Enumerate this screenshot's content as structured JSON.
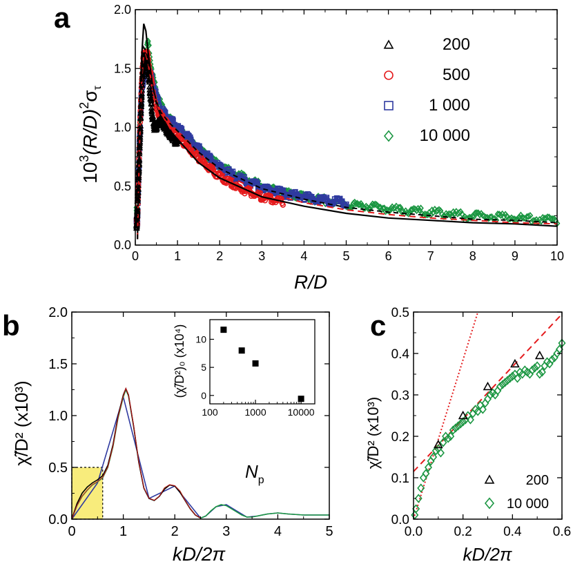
{
  "colors": {
    "black": "#000000",
    "red": "#e41a1c",
    "blue": "#2f3aa0",
    "green": "#1a9641",
    "highlight": "#f8ec7c"
  },
  "chart_data": [
    {
      "panel": "a",
      "type": "scatter",
      "panel_label": "a",
      "xlabel": "R/D",
      "ylabel_main": "10",
      "ylabel_sup1": "3",
      "ylabel_mid": "(R/D)",
      "ylabel_sup2": "2",
      "ylabel_sigma": "σ",
      "ylabel_sub": "τ",
      "xlim": [
        0,
        10
      ],
      "ylim": [
        0,
        2.0
      ],
      "xticks": [
        "0",
        "1",
        "2",
        "3",
        "4",
        "5",
        "6",
        "7",
        "8",
        "9",
        "10"
      ],
      "yticks": [
        "0.0",
        "0.5",
        "1.0",
        "1.5",
        "2.0"
      ],
      "legend": [
        {
          "marker": "triangle",
          "label": "200"
        },
        {
          "marker": "circle",
          "label": "500"
        },
        {
          "marker": "square",
          "label": "1 000"
        },
        {
          "marker": "diamond",
          "label": "10 000"
        }
      ],
      "series": [
        {
          "name": "200",
          "marker": "triangle",
          "xmax": 1.0,
          "x": [
            0.02,
            0.08,
            0.14,
            0.18,
            0.22,
            0.26,
            0.3,
            0.35,
            0.4,
            0.45,
            0.5,
            0.55,
            0.6,
            0.7,
            0.8,
            0.9,
            1.0
          ],
          "y": [
            0.05,
            0.6,
            1.2,
            1.5,
            1.6,
            1.55,
            1.5,
            1.3,
            1.1,
            1.0,
            1.0,
            1.05,
            1.05,
            1.0,
            0.95,
            0.9,
            0.85
          ]
        },
        {
          "name": "500",
          "marker": "circle",
          "xmax": 3.5,
          "x": [
            0.05,
            0.1,
            0.15,
            0.2,
            0.25,
            0.3,
            0.4,
            0.5,
            0.6,
            0.8,
            1.0,
            1.2,
            1.5,
            2.0,
            2.5,
            3.0,
            3.5
          ],
          "y": [
            0.2,
            0.9,
            1.4,
            1.62,
            1.65,
            1.6,
            1.35,
            1.15,
            1.1,
            1.0,
            0.92,
            0.85,
            0.74,
            0.58,
            0.48,
            0.41,
            0.36
          ]
        },
        {
          "name": "1 000",
          "marker": "square",
          "xmax": 5.0,
          "x": [
            0.05,
            0.1,
            0.15,
            0.2,
            0.3,
            0.4,
            0.5,
            0.6,
            0.8,
            1.0,
            1.5,
            2.0,
            2.5,
            3.0,
            3.5,
            4.0,
            4.5,
            5.0
          ],
          "y": [
            0.2,
            0.9,
            1.3,
            1.45,
            1.5,
            1.4,
            1.25,
            1.15,
            1.07,
            1.0,
            0.82,
            0.66,
            0.56,
            0.49,
            0.44,
            0.41,
            0.38,
            0.36
          ]
        },
        {
          "name": "10 000",
          "marker": "diamond",
          "xmax": 10.0,
          "x": [
            0.05,
            0.1,
            0.2,
            0.3,
            0.35,
            0.4,
            0.5,
            0.7,
            1.0,
            1.5,
            2.0,
            3.0,
            4.0,
            5.0,
            6.0,
            7.0,
            8.0,
            9.0,
            10.0
          ],
          "y": [
            0.3,
            1.0,
            1.5,
            1.72,
            1.6,
            1.45,
            1.3,
            1.12,
            1.0,
            0.82,
            0.67,
            0.5,
            0.41,
            0.35,
            0.31,
            0.28,
            0.25,
            0.23,
            0.21
          ]
        }
      ],
      "fit_lines": [
        {
          "style": "solid-black",
          "x": [
            0.05,
            0.1,
            0.15,
            0.2,
            0.25,
            0.3,
            0.4,
            0.5,
            0.6,
            0.8,
            1.0,
            1.5,
            2.0,
            3.0,
            4.0,
            5.0,
            6.0,
            7.0,
            8.0,
            9.0,
            10.0
          ],
          "y": [
            0.05,
            0.9,
            1.6,
            1.88,
            1.82,
            1.65,
            1.38,
            1.2,
            1.1,
            0.98,
            0.9,
            0.7,
            0.57,
            0.41,
            0.33,
            0.27,
            0.23,
            0.21,
            0.19,
            0.18,
            0.16
          ]
        },
        {
          "style": "dashed-red",
          "x": [
            0.05,
            0.1,
            0.15,
            0.2,
            0.25,
            0.3,
            0.4,
            0.5,
            0.6,
            0.8,
            1.0,
            1.5,
            2.0,
            3.0,
            4.0,
            5.0,
            6.0,
            7.0,
            8.0,
            9.0,
            10.0
          ],
          "y": [
            0.05,
            0.85,
            1.4,
            1.62,
            1.62,
            1.55,
            1.35,
            1.2,
            1.12,
            1.02,
            0.95,
            0.76,
            0.62,
            0.45,
            0.36,
            0.3,
            0.26,
            0.23,
            0.21,
            0.19,
            0.18
          ]
        },
        {
          "style": "dashed-black",
          "x": [
            0.05,
            0.1,
            0.15,
            0.2,
            0.25,
            0.3,
            0.4,
            0.5,
            0.6,
            0.8,
            1.0,
            1.5,
            2.0,
            3.0,
            4.0,
            5.0,
            6.0,
            7.0,
            8.0,
            9.0,
            10.0
          ],
          "y": [
            0.05,
            0.88,
            1.45,
            1.68,
            1.65,
            1.58,
            1.37,
            1.22,
            1.13,
            1.04,
            0.97,
            0.79,
            0.65,
            0.48,
            0.39,
            0.32,
            0.28,
            0.25,
            0.22,
            0.21,
            0.19
          ]
        }
      ]
    },
    {
      "panel": "b",
      "type": "line",
      "panel_label": "b",
      "xlabel": "kD/2π",
      "ylabel": "χ̃/D² (x10³)",
      "xlim": [
        0,
        5
      ],
      "ylim": [
        0,
        2.0
      ],
      "xticks": [
        "0",
        "1",
        "2",
        "3",
        "4",
        "5"
      ],
      "yticks": [
        "0.0",
        "0.5",
        "1.0",
        "1.5",
        "2.0"
      ],
      "highlight_box": {
        "x": [
          0,
          0.6
        ],
        "y": [
          0,
          0.5
        ]
      },
      "series": [
        {
          "name": "black",
          "x": [
            0,
            0.1,
            0.2,
            0.3,
            0.4,
            0.5,
            0.6,
            0.7,
            0.8,
            0.9,
            1.0,
            1.05,
            1.1,
            1.2,
            1.3,
            1.4,
            1.5,
            1.6,
            1.7,
            1.8,
            1.9,
            2.0,
            2.1,
            2.2,
            2.3,
            2.4,
            2.5
          ],
          "y": [
            0,
            0.15,
            0.25,
            0.31,
            0.35,
            0.38,
            0.42,
            0.52,
            0.72,
            1.0,
            1.2,
            1.26,
            1.2,
            0.9,
            0.55,
            0.3,
            0.2,
            0.18,
            0.22,
            0.29,
            0.33,
            0.32,
            0.26,
            0.18,
            0.1,
            0.04,
            0.01
          ]
        },
        {
          "name": "green",
          "x": [
            0,
            0.1,
            0.2,
            0.3,
            0.4,
            0.5,
            0.6,
            0.7,
            0.8,
            0.9,
            1.0,
            1.05,
            1.1,
            1.2,
            1.3,
            1.4,
            1.5,
            1.6,
            1.7,
            1.8,
            1.9,
            2.0,
            2.1,
            2.2,
            2.3,
            2.4,
            2.5,
            2.6,
            2.7,
            2.8,
            2.9,
            3.0,
            3.1,
            3.2,
            3.3,
            3.4,
            3.5,
            3.6,
            3.8,
            4.0,
            4.2,
            4.5,
            4.8,
            5.0
          ],
          "y": [
            0,
            0.13,
            0.22,
            0.28,
            0.33,
            0.36,
            0.4,
            0.5,
            0.7,
            0.98,
            1.18,
            1.25,
            1.19,
            0.9,
            0.55,
            0.3,
            0.2,
            0.18,
            0.22,
            0.3,
            0.33,
            0.32,
            0.27,
            0.18,
            0.1,
            0.04,
            0.01,
            0.03,
            0.08,
            0.12,
            0.14,
            0.13,
            0.1,
            0.07,
            0.04,
            0.02,
            0.02,
            0.03,
            0.05,
            0.06,
            0.05,
            0.04,
            0.04,
            0.04
          ]
        },
        {
          "name": "blue",
          "x": [
            0,
            0.5,
            1.0,
            1.5,
            2.0,
            2.5,
            2.6,
            2.8,
            3.0,
            3.2,
            3.4,
            3.6,
            3.8,
            4.0,
            4.2,
            4.5,
            4.8,
            5.0
          ],
          "y": [
            0,
            0.35,
            1.18,
            0.2,
            0.32,
            0.01,
            0.03,
            0.12,
            0.14,
            0.08,
            0.02,
            0.03,
            0.05,
            0.06,
            0.05,
            0.04,
            0.04,
            0.04
          ]
        }
      ],
      "inset": {
        "type": "scatter",
        "xlabel_main": "N",
        "xlabel_sub": "p",
        "ylabel": "(χ̃/D²)₀ (x10⁴)",
        "xscale": "log",
        "xlim": [
          100,
          20000
        ],
        "ylim": [
          -1.5,
          13.5
        ],
        "xticks": [
          "100",
          "1000",
          "10000"
        ],
        "yticks": [
          "0",
          "5",
          "10"
        ],
        "x": [
          200,
          500,
          1000,
          10000
        ],
        "y": [
          11.7,
          8.0,
          5.7,
          -0.6
        ]
      }
    },
    {
      "panel": "c",
      "type": "scatter",
      "panel_label": "c",
      "xlabel": "kD/2π",
      "ylabel": "χ̃/D² (x10³)",
      "xlim": [
        0,
        0.6
      ],
      "ylim": [
        0,
        0.5
      ],
      "xticks": [
        "0.0",
        "0.2",
        "0.4",
        "0.6"
      ],
      "yticks": [
        "0.0",
        "0.1",
        "0.2",
        "0.3",
        "0.4",
        "0.5"
      ],
      "legend": [
        {
          "marker": "triangle",
          "label": "200"
        },
        {
          "marker": "diamond",
          "label": "10 000"
        }
      ],
      "series": [
        {
          "name": "200",
          "marker": "triangle",
          "x": [
            0.1,
            0.2,
            0.3,
            0.41,
            0.51
          ],
          "y": [
            0.18,
            0.25,
            0.32,
            0.375,
            0.395
          ]
        },
        {
          "name": "10 000",
          "marker": "diamond",
          "x": [
            0.005,
            0.01,
            0.02,
            0.03,
            0.04,
            0.05,
            0.06,
            0.07,
            0.08,
            0.09,
            0.1,
            0.11,
            0.12,
            0.13,
            0.14,
            0.15,
            0.16,
            0.17,
            0.18,
            0.19,
            0.2,
            0.21,
            0.22,
            0.23,
            0.24,
            0.25,
            0.26,
            0.27,
            0.28,
            0.29,
            0.3,
            0.31,
            0.32,
            0.33,
            0.34,
            0.35,
            0.36,
            0.37,
            0.38,
            0.39,
            0.4,
            0.41,
            0.42,
            0.43,
            0.44,
            0.45,
            0.46,
            0.47,
            0.48,
            0.49,
            0.5,
            0.51,
            0.52,
            0.53,
            0.54,
            0.55,
            0.56,
            0.57,
            0.58,
            0.59,
            0.6
          ],
          "y": [
            0.01,
            0.025,
            0.05,
            0.075,
            0.1,
            0.11,
            0.125,
            0.14,
            0.15,
            0.165,
            0.17,
            0.16,
            0.185,
            0.2,
            0.195,
            0.2,
            0.215,
            0.22,
            0.225,
            0.23,
            0.235,
            0.24,
            0.25,
            0.24,
            0.255,
            0.265,
            0.26,
            0.275,
            0.265,
            0.28,
            0.29,
            0.3,
            0.305,
            0.3,
            0.31,
            0.32,
            0.325,
            0.33,
            0.335,
            0.34,
            0.345,
            0.35,
            0.34,
            0.355,
            0.35,
            0.36,
            0.355,
            0.35,
            0.36,
            0.365,
            0.37,
            0.35,
            0.355,
            0.37,
            0.38,
            0.375,
            0.385,
            0.39,
            0.4,
            0.41,
            0.425
          ]
        }
      ],
      "fit_lines": [
        {
          "style": "dotted-red",
          "x": [
            0,
            0.26
          ],
          "y": [
            0,
            0.5
          ]
        },
        {
          "style": "dashed-red",
          "x": [
            0,
            0.6
          ],
          "y": [
            0.115,
            0.495
          ]
        }
      ]
    }
  ]
}
